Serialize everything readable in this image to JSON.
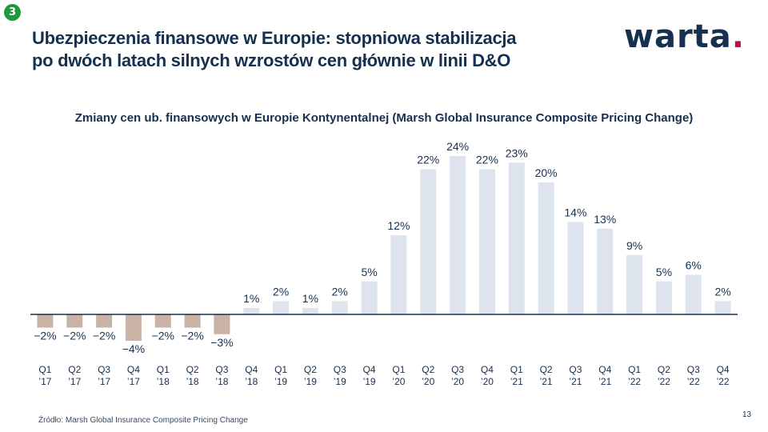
{
  "slide": {
    "badge": "3",
    "title_line1": "Ubezpieczenia finansowe w Europie: stopniowa stabilizacja",
    "title_line2": "po dwóch latach silnych wzrostów cen głównie w linii D&O",
    "logo_text": "warta",
    "logo_dot": ".",
    "source": "Źródło: Marsh Global Insurance Composite Pricing Change",
    "page_number": "13"
  },
  "colors": {
    "positive_bar": "#dde4ee",
    "negative_bar": "#c9b3a6",
    "axis": "#16304f",
    "text": "#16304f",
    "accent": "#b4123c",
    "badge": "#1f9a3a"
  },
  "chart_data": {
    "type": "bar",
    "title": "Zmiany cen ub. finansowych w Europie Kontynentalnej  (Marsh Global Insurance Composite Pricing Change)",
    "categories": [
      [
        "Q1",
        "’17"
      ],
      [
        "Q2",
        "’17"
      ],
      [
        "Q3",
        "’17"
      ],
      [
        "Q4",
        "’17"
      ],
      [
        "Q1",
        "’18"
      ],
      [
        "Q2",
        "’18"
      ],
      [
        "Q3",
        "’18"
      ],
      [
        "Q4",
        "’18"
      ],
      [
        "Q1",
        "’19"
      ],
      [
        "Q2",
        "’19"
      ],
      [
        "Q3",
        "’19"
      ],
      [
        "Q4",
        "’19"
      ],
      [
        "Q1",
        "’20"
      ],
      [
        "Q2",
        "’20"
      ],
      [
        "Q3",
        "’20"
      ],
      [
        "Q4",
        "’20"
      ],
      [
        "Q1",
        "’21"
      ],
      [
        "Q2",
        "’21"
      ],
      [
        "Q3",
        "’21"
      ],
      [
        "Q4",
        "’21"
      ],
      [
        "Q1",
        "’22"
      ],
      [
        "Q2",
        "’22"
      ],
      [
        "Q3",
        "’22"
      ],
      [
        "Q4",
        "’22"
      ]
    ],
    "values": [
      -2,
      -2,
      -2,
      -4,
      -2,
      -2,
      -3,
      1,
      2,
      1,
      2,
      5,
      12,
      22,
      24,
      22,
      23,
      20,
      14,
      13,
      9,
      5,
      6,
      2
    ],
    "value_labels": [
      "−2%",
      "−2%",
      "−2%",
      "−4%",
      "−2%",
      "−2%",
      "−3%",
      "1%",
      "2%",
      "1%",
      "2%",
      "5%",
      "12%",
      "22%",
      "24%",
      "22%",
      "23%",
      "20%",
      "14%",
      "13%",
      "9%",
      "5%",
      "6%",
      "2%"
    ],
    "ylim": [
      -4,
      24
    ],
    "grid": false,
    "legend": "none"
  }
}
